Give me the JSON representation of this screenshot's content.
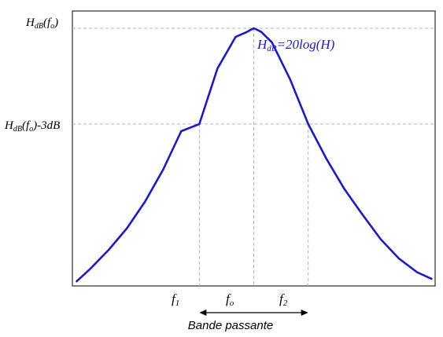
{
  "chart_data": {
    "type": "line",
    "title": "",
    "xlabel": "",
    "ylabel": "",
    "ylim": [
      0,
      1
    ],
    "y_ticks": [
      {
        "id": "peak",
        "main": "H",
        "sub": "dB",
        "suffix": "(f",
        "sub2": "o",
        "end": ")",
        "y": 0.937
      },
      {
        "id": "cut",
        "main": "H",
        "sub": "dB",
        "suffix": "(f",
        "sub2": "o",
        "end": ")-3dB",
        "y": 0.589
      }
    ],
    "x_ticks": [
      {
        "id": "f1",
        "main": "f",
        "sub": "1",
        "x": 0.35
      },
      {
        "id": "fo",
        "main": "f",
        "sub": "o",
        "x": 0.5
      },
      {
        "id": "f2",
        "main": "f",
        "sub": "2",
        "x": 0.65
      }
    ],
    "series": [
      {
        "label": {
          "main": "H",
          "sub": "dB",
          "rest": "=20log(H)"
        },
        "color": "#1a1acc",
        "x": [
          0.012,
          0.05,
          0.1,
          0.15,
          0.2,
          0.25,
          0.3,
          0.35,
          0.4,
          0.45,
          0.48,
          0.5,
          0.52,
          0.55,
          0.6,
          0.65,
          0.7,
          0.75,
          0.8,
          0.85,
          0.9,
          0.95,
          0.99
        ],
        "y": [
          0.017,
          0.063,
          0.131,
          0.209,
          0.306,
          0.423,
          0.563,
          0.589,
          0.791,
          0.906,
          0.923,
          0.937,
          0.925,
          0.886,
          0.752,
          0.589,
          0.463,
          0.352,
          0.259,
          0.17,
          0.1,
          0.05,
          0.026
        ]
      }
    ],
    "annotations": [
      {
        "type": "double-arrow",
        "from": "f1",
        "to": "f2",
        "text": "Bande passante"
      }
    ],
    "grid": "dashed guide lines at marked points",
    "colors": {
      "curve": "#1a1acc",
      "guides": "#b3b3b3",
      "axes": "#000000"
    }
  }
}
